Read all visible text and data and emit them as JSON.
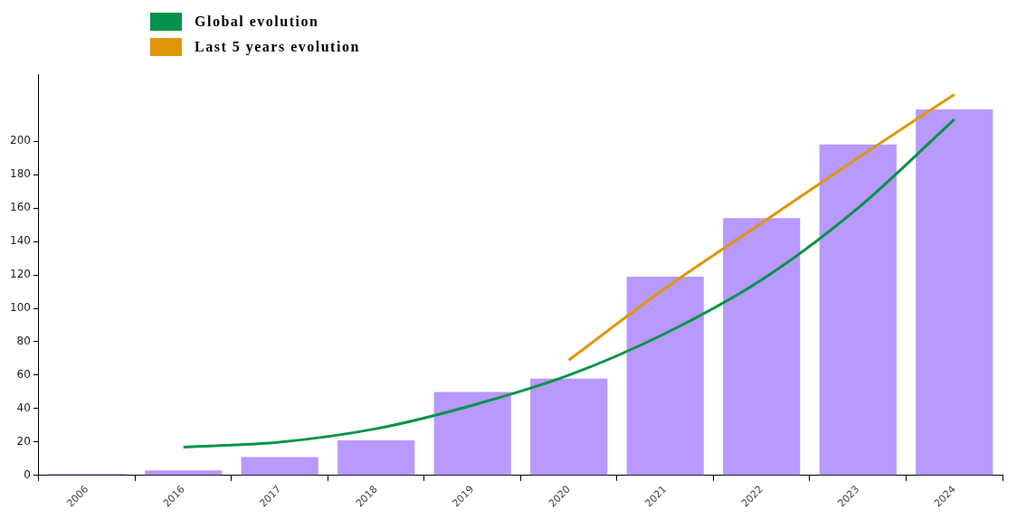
{
  "chart_data": {
    "type": "bar",
    "categories": [
      "2006",
      "2016",
      "2017",
      "2018",
      "2019",
      "2020",
      "2021",
      "2022",
      "2023",
      "2024"
    ],
    "series": [
      {
        "color": "#b899fd",
        "values": [
          1,
          3,
          11,
          21,
          50,
          58,
          119,
          154,
          198,
          219
        ]
      },
      {
        "type": "line",
        "name": "Global evolution",
        "color": "#00944a",
        "values": [
          null,
          17,
          20,
          28,
          42,
          60,
          85,
          117,
          160,
          213
        ]
      },
      {
        "type": "line",
        "name": "Last 5 years evolution",
        "color": "#e0960a",
        "values": [
          null,
          null,
          null,
          null,
          null,
          69,
          112,
          151,
          190,
          228
        ]
      }
    ],
    "ylim": [
      0,
      240
    ],
    "yticks": [
      0,
      20,
      40,
      60,
      80,
      100,
      120,
      140,
      160,
      180,
      200
    ],
    "legend": "top left",
    "marker": "none"
  }
}
